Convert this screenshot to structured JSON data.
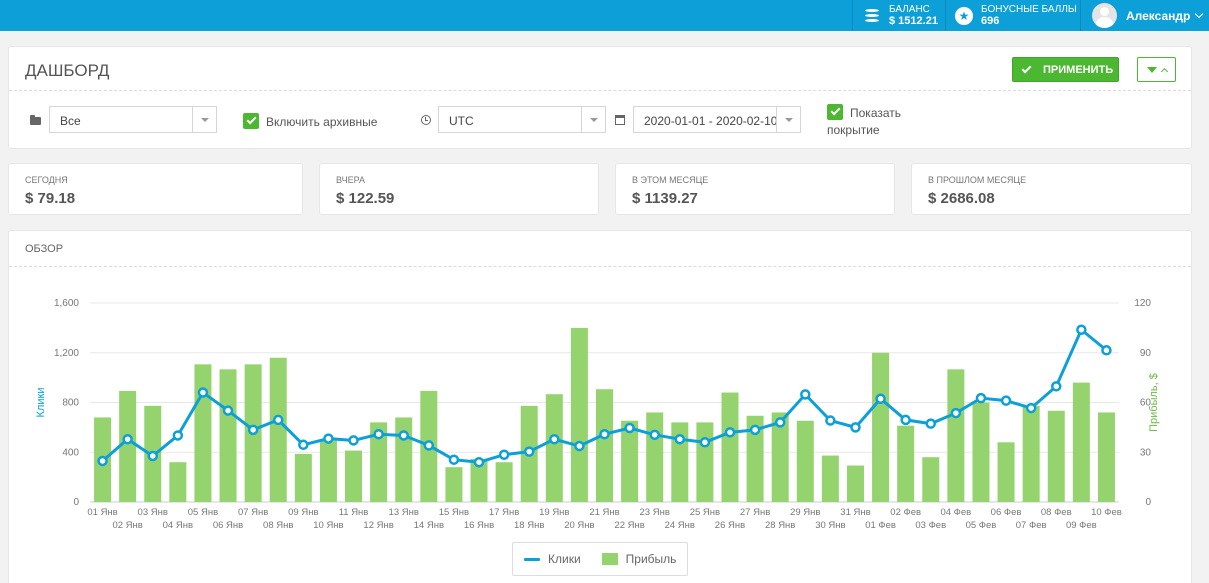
{
  "topbar": {
    "balance_label": "БАЛАНС",
    "balance_value": "$ 1512.21",
    "bonus_label": "БОНУСНЫЕ БАЛЛЫ",
    "bonus_value": "696",
    "user_name": "Александр",
    "balance_icon": "coins-icon",
    "bonus_icon": "star-badge-icon"
  },
  "header": {
    "title": "ДАШБОРД",
    "apply_label": "ПРИМЕНИТЬ"
  },
  "filters": {
    "group_value": "Все",
    "include_archived_label": "Включить архивные",
    "timezone_value": "UTC",
    "date_range_value": "2020-01-01 - 2020-02-10",
    "show_coverage_label_line1": "Показать",
    "show_coverage_label_line2": "покрытие"
  },
  "stats": [
    {
      "label": "СЕГОДНЯ",
      "value": "$ 79.18"
    },
    {
      "label": "ВЧЕРА",
      "value": "$ 122.59"
    },
    {
      "label": "В ЭТОМ МЕСЯЦЕ",
      "value": "$ 1139.27"
    },
    {
      "label": "В ПРОШЛОМ МЕСЯЦЕ",
      "value": "$ 2686.08"
    }
  ],
  "overview": {
    "title": "ОБЗОР"
  },
  "colors": {
    "accent": "#0d9fd8",
    "green": "#4cb832",
    "bar": "#95d36e"
  },
  "chart_data": {
    "type": "bar",
    "categories": [
      "01 Янв",
      "02 Янв",
      "03 Янв",
      "04 Янв",
      "05 Янв",
      "06 Янв",
      "07 Янв",
      "08 Янв",
      "09 Янв",
      "10 Янв",
      "11 Янв",
      "12 Янв",
      "13 Янв",
      "14 Янв",
      "15 Янв",
      "16 Янв",
      "17 Янв",
      "18 Янв",
      "19 Янв",
      "20 Янв",
      "21 Янв",
      "22 Янв",
      "23 Янв",
      "24 Янв",
      "25 Янв",
      "26 Янв",
      "27 Янв",
      "28 Янв",
      "29 Янв",
      "30 Янв",
      "31 Янв",
      "01 Фев",
      "02 Фев",
      "03 Фев",
      "04 Фев",
      "05 Фев",
      "06 Фев",
      "07 Фев",
      "08 Фев",
      "09 Фев",
      "10 Фев"
    ],
    "series": [
      {
        "name": "Клики",
        "type": "line",
        "axis": "left",
        "values": [
          330,
          505,
          370,
          535,
          880,
          735,
          580,
          660,
          460,
          510,
          495,
          545,
          535,
          455,
          340,
          320,
          380,
          405,
          505,
          450,
          545,
          595,
          540,
          505,
          480,
          560,
          580,
          640,
          865,
          655,
          600,
          830,
          660,
          630,
          715,
          835,
          815,
          755,
          930,
          1385,
          1220
        ]
      },
      {
        "name": "Прибыль",
        "type": "bar",
        "axis": "right",
        "values": [
          51,
          67,
          58,
          24,
          83,
          80,
          83,
          87,
          29,
          37,
          31,
          48,
          51,
          67,
          21,
          26,
          24,
          58,
          65,
          105,
          68,
          49,
          54,
          48,
          48,
          66,
          52,
          54,
          49,
          28,
          22,
          90,
          46,
          27,
          80,
          60,
          36,
          58,
          55,
          72,
          54
        ]
      }
    ],
    "ylabel_left": "Клики",
    "ylabel_right": "Прибыль, $",
    "ylim_left": [
      0,
      1600
    ],
    "ylim_right": [
      0,
      120
    ],
    "yticks_left": [
      "0",
      "400",
      "800",
      "1,200",
      "1,600"
    ],
    "yticks_right": [
      "0",
      "30",
      "60",
      "90",
      "120"
    ],
    "grid": true,
    "legend": "bottom-center"
  }
}
